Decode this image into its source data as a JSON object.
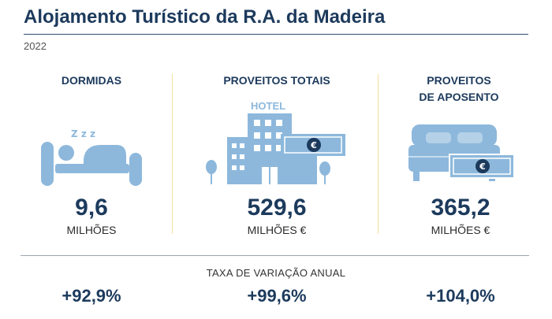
{
  "header": {
    "title": "Alojamento Turístico da R.A. da Madeira",
    "year": "2022"
  },
  "metrics": [
    {
      "label": "DORMIDAS",
      "value": "9,6",
      "unit": "MILHÕES",
      "change": "+92,9%",
      "icon": "sleeping-person-icon"
    },
    {
      "label": "PROVEITOS TOTAIS",
      "value": "529,6",
      "unit": "MILHÕES €",
      "change": "+99,6%",
      "icon": "hotel-building-icon",
      "icon_text": "HOTEL",
      "currency_symbol": "€"
    },
    {
      "label_line1": "PROVEITOS",
      "label_line2": "DE APOSENTO",
      "value": "365,2",
      "unit": "MILHÕES €",
      "change": "+104,0%",
      "icon": "bed-money-icon",
      "currency_symbol": "€"
    }
  ],
  "rates": {
    "label": "TAXA DE VARIAÇÃO ANUAL"
  },
  "colors": {
    "icon_blue": "#8db8dc",
    "text_navy": "#1c3a5c",
    "divider_yellow": "#f3e0a0"
  },
  "sleep_glyph": "Z z z"
}
